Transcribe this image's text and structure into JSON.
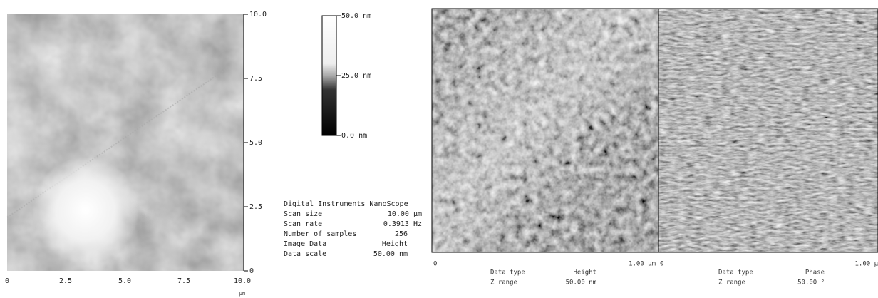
{
  "height_image": {
    "x_ticks": [
      "0",
      "2.5",
      "5.0",
      "7.5",
      "10.0"
    ],
    "y_ticks": [
      "10.0",
      "7.5",
      "5.0",
      "2.5",
      "0"
    ],
    "x_unit": "µm"
  },
  "color_bar": {
    "labels": [
      "50.0 nm",
      "25.0 nm",
      "0.0 nm"
    ]
  },
  "scan_info": {
    "rows": [
      [
        "Digital Instruments NanoScope",
        ""
      ],
      [
        "Scan size",
        "10.00 µm"
      ],
      [
        "Scan rate",
        "0.3913 Hz"
      ],
      [
        "Number of samples",
        "256"
      ],
      [
        "Image Data",
        "Height"
      ],
      [
        "Data scale",
        "50.00 nm"
      ]
    ]
  },
  "panels": [
    {
      "x_start": "0",
      "x_end": "1.00 µm",
      "rows": [
        [
          "Data type",
          "Height"
        ],
        [
          "Z range",
          "50.00 nm"
        ]
      ]
    },
    {
      "x_start": "0",
      "x_end": "1.00 µ",
      "rows": [
        [
          "Data type",
          "Phase"
        ],
        [
          "Z range",
          "50.00 °"
        ]
      ]
    }
  ]
}
